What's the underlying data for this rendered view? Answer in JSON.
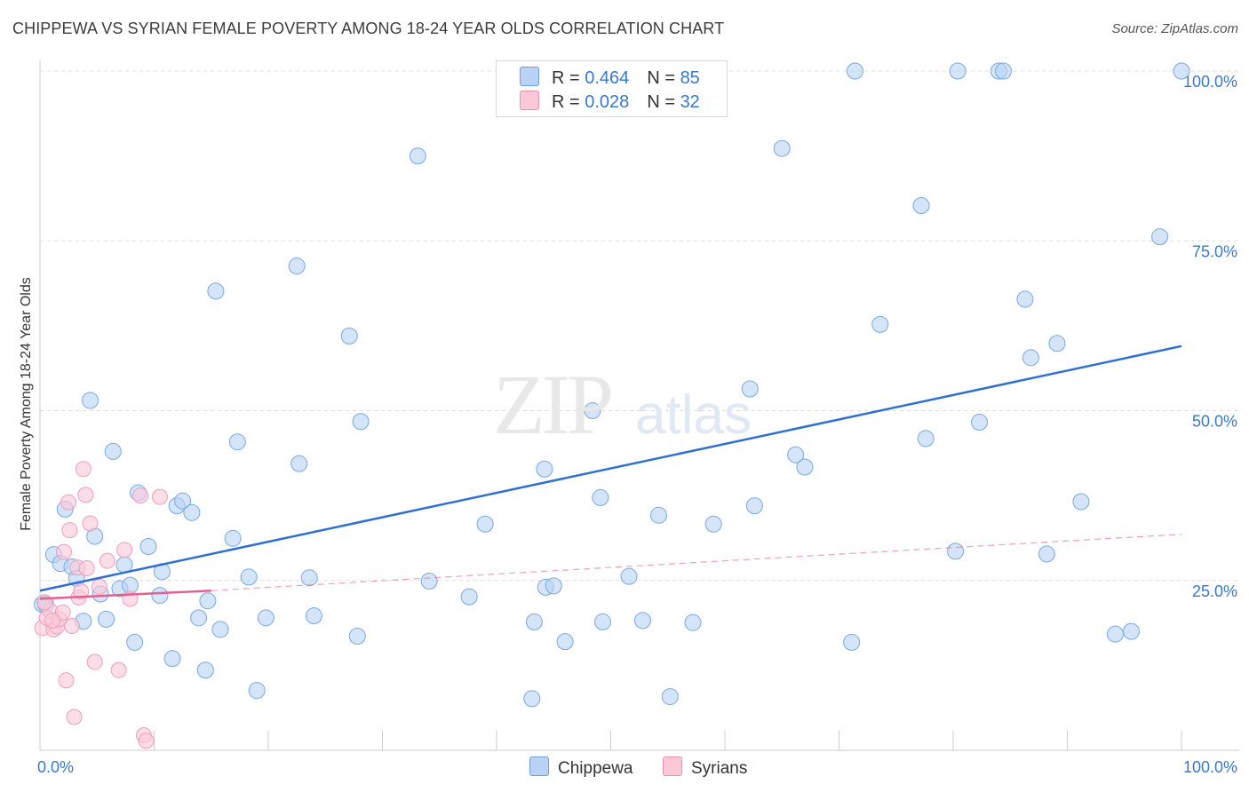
{
  "title": "CHIPPEWA VS SYRIAN FEMALE POVERTY AMONG 18-24 YEAR OLDS CORRELATION CHART",
  "source": "Source: ZipAtlas.com",
  "watermark": {
    "zip": "ZIP",
    "atlas": "atlas"
  },
  "legend": {
    "rows": [
      {
        "r_label": "R = ",
        "r_value": "0.464",
        "n_label": "N = ",
        "n_value": "85",
        "color": "#b8d3f5",
        "border": "#6f9ed8"
      },
      {
        "r_label": "R = ",
        "r_value": "0.028",
        "n_label": "N = ",
        "n_value": "32",
        "color": "#fbc8d8",
        "border": "#e88fae"
      }
    ]
  },
  "bottom_legend": [
    {
      "label": "Chippewa",
      "color": "#b8d3f5",
      "border": "#6f9ed8"
    },
    {
      "label": "Syrians",
      "color": "#fbc8d8",
      "border": "#e88fae"
    }
  ],
  "chart_data": {
    "type": "scatter",
    "title": "CHIPPEWA VS SYRIAN FEMALE POVERTY AMONG 18-24 YEAR OLDS CORRELATION CHART",
    "xlabel": "",
    "ylabel": "Female Poverty Among 18-24 Year Olds",
    "xlim": [
      0,
      100
    ],
    "ylim": [
      0,
      100
    ],
    "x_tick_labels": [
      "0.0%",
      "100.0%"
    ],
    "y_ticks": [
      {
        "value": 25,
        "label": "25.0%"
      },
      {
        "value": 50,
        "label": "50.0%"
      },
      {
        "value": 75,
        "label": "75.0%"
      },
      {
        "value": 100,
        "label": "100.0%"
      }
    ],
    "grid": true,
    "series": [
      {
        "name": "Chippewa",
        "color": "#b8d3f5",
        "edge": "#7aa8e0",
        "trend": {
          "x0": 0,
          "y0": 23.5,
          "x1": 100,
          "y1": 59.5,
          "style": "solid",
          "color": "#2f6fd0"
        },
        "points": [
          [
            0.2,
            21.5
          ],
          [
            0.5,
            21.5
          ],
          [
            1.2,
            28.8
          ],
          [
            1.8,
            27.5
          ],
          [
            2.2,
            35.5
          ],
          [
            2.8,
            27
          ],
          [
            3.2,
            25.3
          ],
          [
            3.8,
            19
          ],
          [
            4.4,
            51.5
          ],
          [
            4.8,
            31.5
          ],
          [
            5.3,
            23
          ],
          [
            5.8,
            19.3
          ],
          [
            6.4,
            44
          ],
          [
            7,
            23.8
          ],
          [
            7.4,
            27.3
          ],
          [
            7.9,
            24.3
          ],
          [
            8.3,
            15.9
          ],
          [
            8.6,
            37.9
          ],
          [
            9.5,
            30
          ],
          [
            10.5,
            22.8
          ],
          [
            10.7,
            26.3
          ],
          [
            11.6,
            13.5
          ],
          [
            12,
            36
          ],
          [
            12.5,
            36.7
          ],
          [
            13.3,
            35
          ],
          [
            13.9,
            19.5
          ],
          [
            14.5,
            11.8
          ],
          [
            14.7,
            22
          ],
          [
            15.4,
            67.6
          ],
          [
            15.8,
            17.8
          ],
          [
            16.9,
            31.2
          ],
          [
            17.3,
            45.4
          ],
          [
            18.3,
            25.5
          ],
          [
            19,
            8.8
          ],
          [
            19.8,
            19.5
          ],
          [
            22.5,
            71.3
          ],
          [
            22.7,
            42.2
          ],
          [
            23.6,
            25.4
          ],
          [
            24,
            19.8
          ],
          [
            27.1,
            61
          ],
          [
            27.8,
            16.8
          ],
          [
            28.1,
            48.4
          ],
          [
            33.1,
            87.5
          ],
          [
            34.1,
            24.9
          ],
          [
            37.6,
            22.6
          ],
          [
            39,
            33.3
          ],
          [
            43.1,
            7.6
          ],
          [
            43.3,
            18.9
          ],
          [
            44.2,
            41.4
          ],
          [
            44.3,
            24
          ],
          [
            45,
            24.2
          ],
          [
            46,
            16
          ],
          [
            48.4,
            50
          ],
          [
            49.1,
            37.2
          ],
          [
            49.3,
            18.9
          ],
          [
            51.6,
            25.6
          ],
          [
            52.8,
            19.1
          ],
          [
            54.2,
            34.6
          ],
          [
            55.2,
            7.9
          ],
          [
            57.2,
            18.8
          ],
          [
            59,
            33.3
          ],
          [
            62.2,
            53.2
          ],
          [
            62.6,
            36
          ],
          [
            65,
            88.6
          ],
          [
            66.2,
            43.5
          ],
          [
            67,
            41.7
          ],
          [
            71.1,
            15.9
          ],
          [
            71.4,
            100
          ],
          [
            73.6,
            62.7
          ],
          [
            77.2,
            80.2
          ],
          [
            77.6,
            45.9
          ],
          [
            80.2,
            29.3
          ],
          [
            80.4,
            100
          ],
          [
            82.3,
            48.3
          ],
          [
            84,
            100
          ],
          [
            84.4,
            100
          ],
          [
            86.3,
            66.4
          ],
          [
            86.8,
            57.8
          ],
          [
            88.2,
            28.9
          ],
          [
            89.1,
            59.9
          ],
          [
            91.2,
            36.6
          ],
          [
            94.2,
            17.1
          ],
          [
            95.6,
            17.5
          ],
          [
            98.1,
            75.6
          ],
          [
            100,
            100
          ]
        ]
      },
      {
        "name": "Syrians",
        "color": "#fbc8d8",
        "edge": "#ee9fbb",
        "trend": {
          "x0": 0,
          "y0": 22.3,
          "x1": 15,
          "y1": 23.5,
          "style": "solid",
          "color": "#e3608f",
          "extend": {
            "x1": 100,
            "y1": 31.8,
            "style": "dashed"
          }
        },
        "points": [
          [
            0.2,
            18
          ],
          [
            0.6,
            19.5
          ],
          [
            0.9,
            20.5
          ],
          [
            1.2,
            17.8
          ],
          [
            1.5,
            18.2
          ],
          [
            1.7,
            19.3
          ],
          [
            2,
            20.3
          ],
          [
            2.1,
            29.2
          ],
          [
            2.3,
            10.3
          ],
          [
            2.5,
            36.5
          ],
          [
            2.6,
            32.4
          ],
          [
            2.8,
            18.3
          ],
          [
            3,
            4.9
          ],
          [
            3.3,
            26.9
          ],
          [
            3.4,
            22.5
          ],
          [
            3.6,
            23.4
          ],
          [
            3.8,
            41.4
          ],
          [
            4,
            37.6
          ],
          [
            4.1,
            26.8
          ],
          [
            4.4,
            33.4
          ],
          [
            4.8,
            13
          ],
          [
            5.2,
            24.1
          ],
          [
            5.9,
            27.9
          ],
          [
            6.9,
            11.8
          ],
          [
            7.4,
            29.5
          ],
          [
            7.9,
            22.3
          ],
          [
            8.8,
            37.5
          ],
          [
            9.1,
            2.2
          ],
          [
            9.3,
            1.4
          ],
          [
            10.5,
            37.3
          ],
          [
            0.4,
            21.8
          ],
          [
            1.1,
            19.1
          ]
        ]
      }
    ]
  }
}
